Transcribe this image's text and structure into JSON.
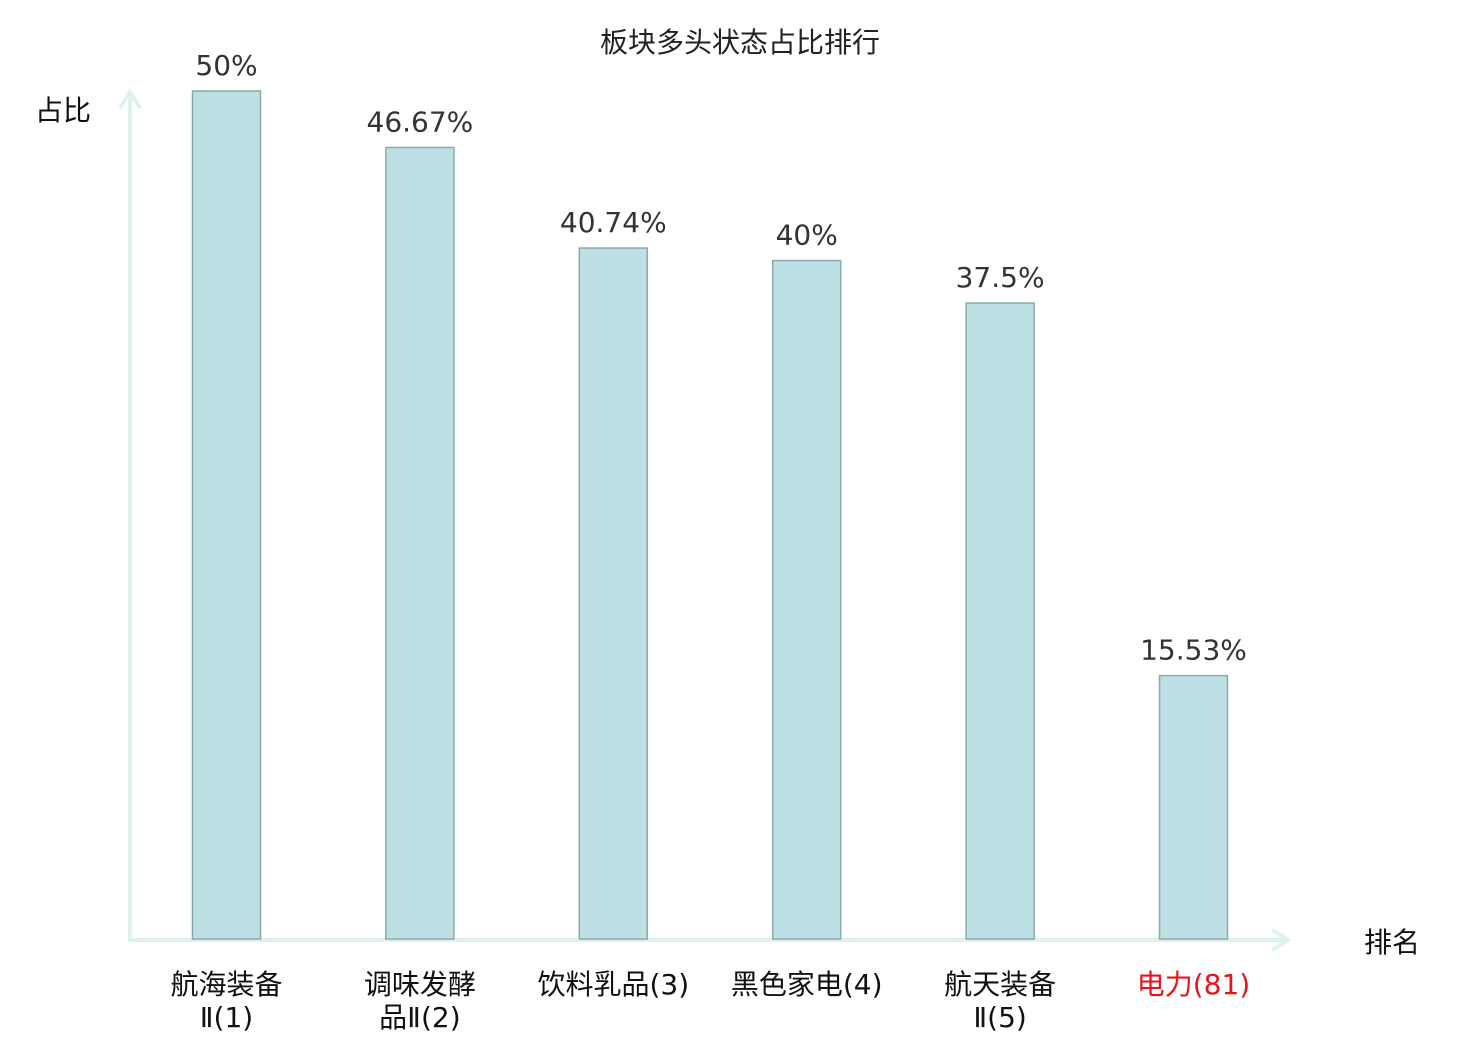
{
  "chart_data": {
    "type": "bar",
    "title": "板块多头状态占比排行",
    "ylabel": "占比",
    "xlabel": "排名",
    "ylim": [
      0,
      50
    ],
    "grid": false,
    "categories": [
      [
        "航海装备",
        "Ⅱ(1)"
      ],
      [
        "调味发酵",
        "品Ⅱ(2)"
      ],
      [
        "饮料乳品(3)"
      ],
      [
        "黑色家电(4)"
      ],
      [
        "航天装备",
        "Ⅱ(5)"
      ],
      [
        "电力(81)"
      ]
    ],
    "values": [
      50,
      46.67,
      40.74,
      40,
      37.5,
      15.53
    ],
    "data_labels": [
      "50%",
      "46.67%",
      "40.74%",
      "40%",
      "37.5%",
      "15.53%"
    ],
    "highlight_index": 5,
    "colors": {
      "bar_fill": "#bce0e3",
      "bar_stroke": "#8aa9aa",
      "axis": "#dff2f0",
      "highlight_label": "#e8141a",
      "text": "#333333"
    }
  }
}
